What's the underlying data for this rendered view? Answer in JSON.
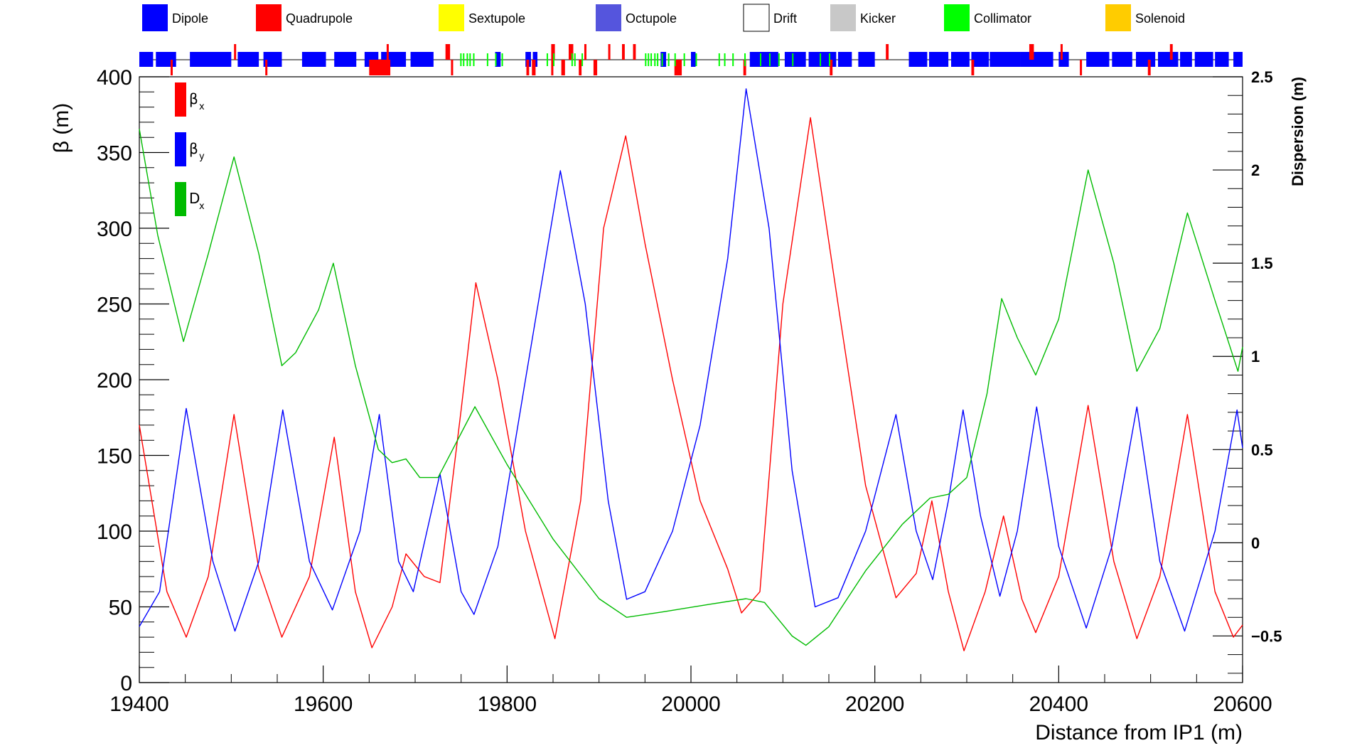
{
  "element_legend": [
    {
      "name": "Dipole",
      "color": "#0000ff"
    },
    {
      "name": "Quadrupole",
      "color": "#ff0000"
    },
    {
      "name": "Sextupole",
      "color": "#ffff00"
    },
    {
      "name": "Octupole",
      "color": "#5555dd"
    },
    {
      "name": "Drift",
      "color": "#ffffff"
    },
    {
      "name": "Kicker",
      "color": "#c8c8c8"
    },
    {
      "name": "Collimator",
      "color": "#00ff00"
    },
    {
      "name": "Solenoid",
      "color": "#ffcc00"
    }
  ],
  "series_legend": [
    {
      "symbol": "β",
      "sub": "x",
      "color": "#ff0000"
    },
    {
      "symbol": "β",
      "sub": "y",
      "color": "#0000ff"
    },
    {
      "symbol": "D",
      "sub": "x",
      "color": "#00bb00"
    }
  ],
  "axes": {
    "xlabel": "Distance from IP1 (m)",
    "ylabel": "β (m)",
    "y2label": "Dispersion (m)",
    "xticks": [
      "19400",
      "19600",
      "19800",
      "20000",
      "20200",
      "20400",
      "20600"
    ],
    "yticks": [
      "0",
      "50",
      "100",
      "150",
      "200",
      "250",
      "300",
      "350",
      "400"
    ],
    "y2ticks": [
      "−0.5",
      "0",
      "0.5",
      "1",
      "1.5",
      "2",
      "2.5"
    ]
  },
  "chart_data": {
    "type": "line",
    "xlabel": "Distance from IP1 (m)",
    "ylabel": "β (m)",
    "y2label": "Dispersion (m)",
    "xlim": [
      19400,
      20600
    ],
    "ylim": [
      0,
      400
    ],
    "y2lim": [
      -0.75,
      2.5
    ],
    "grid": false,
    "legend_position": "top-left",
    "series": [
      {
        "name": "βx",
        "axis": "left",
        "color": "#ff0000",
        "x": [
          19400,
          19430,
          19451,
          19475,
          19503,
          19530,
          19555,
          19585,
          19612,
          19635,
          19653,
          19675,
          19690,
          19710,
          19727,
          19750,
          19766,
          19790,
          19820,
          19852,
          19880,
          19905,
          19929,
          19950,
          19980,
          20010,
          20040,
          20055,
          20075,
          20100,
          20130,
          20160,
          20190,
          20223,
          20245,
          20262,
          20280,
          20297,
          20320,
          20340,
          20360,
          20375,
          20400,
          20432,
          20460,
          20485,
          20510,
          20540,
          20570,
          20590,
          20600
        ],
        "y": [
          170,
          60,
          30,
          70,
          177,
          75,
          30,
          70,
          162,
          60,
          23,
          50,
          85,
          70,
          66,
          180,
          264,
          200,
          100,
          29,
          120,
          300,
          361,
          290,
          200,
          120,
          75,
          46,
          60,
          250,
          373,
          250,
          130,
          56,
          72,
          120,
          60,
          21,
          60,
          110,
          55,
          33,
          70,
          183,
          80,
          29,
          70,
          177,
          60,
          30,
          38
        ]
      },
      {
        "name": "βy",
        "axis": "left",
        "color": "#0000ff",
        "x": [
          19400,
          19422,
          19451,
          19480,
          19504,
          19530,
          19556,
          19585,
          19610,
          19640,
          19661,
          19682,
          19698,
          19727,
          19750,
          19764,
          19790,
          19820,
          19858,
          19885,
          19910,
          19930,
          19950,
          19980,
          20010,
          20040,
          20060,
          20085,
          20110,
          20135,
          20160,
          20190,
          20223,
          20245,
          20263,
          20280,
          20296,
          20315,
          20336,
          20355,
          20376,
          20400,
          20430,
          20458,
          20485,
          20510,
          20537,
          20570,
          20594,
          20600
        ],
        "y": [
          37,
          60,
          181,
          80,
          34,
          80,
          180,
          80,
          48,
          100,
          177,
          80,
          60,
          138,
          60,
          45,
          90,
          200,
          338,
          250,
          120,
          55,
          60,
          100,
          170,
          280,
          392,
          300,
          140,
          50,
          56,
          100,
          177,
          100,
          68,
          120,
          180,
          110,
          57,
          100,
          182,
          90,
          36,
          90,
          182,
          80,
          34,
          100,
          180,
          155
        ]
      },
      {
        "name": "Dx",
        "axis": "right",
        "color": "#00bb00",
        "x": [
          19400,
          19420,
          19448,
          19475,
          19503,
          19530,
          19555,
          19570,
          19595,
          19611,
          19635,
          19660,
          19675,
          19690,
          19705,
          19725,
          19765,
          19800,
          19850,
          19900,
          19930,
          19970,
          20020,
          20060,
          20080,
          20110,
          20125,
          20150,
          20190,
          20230,
          20260,
          20280,
          20300,
          20322,
          20338,
          20355,
          20375,
          20400,
          20432,
          20460,
          20485,
          20510,
          20540,
          20570,
          20595,
          20600
        ],
        "y": [
          2.22,
          1.65,
          1.08,
          1.55,
          2.07,
          1.55,
          0.95,
          1.02,
          1.25,
          1.5,
          0.95,
          0.5,
          0.43,
          0.45,
          0.35,
          0.35,
          0.73,
          0.42,
          0.02,
          -0.3,
          -0.4,
          -0.37,
          -0.33,
          -0.3,
          -0.32,
          -0.5,
          -0.55,
          -0.45,
          -0.15,
          0.1,
          0.24,
          0.26,
          0.35,
          0.8,
          1.31,
          1.1,
          0.9,
          1.2,
          2.0,
          1.5,
          0.92,
          1.15,
          1.77,
          1.3,
          0.92,
          1.05
        ]
      }
    ]
  },
  "lattice": {
    "dipoles": [
      [
        19400,
        19415
      ],
      [
        19418,
        19440
      ],
      [
        19455,
        19500
      ],
      [
        19507,
        19530
      ],
      [
        19535,
        19555
      ],
      [
        19577,
        19603
      ],
      [
        19612,
        19636
      ],
      [
        19645,
        19660
      ],
      [
        19663,
        19690
      ],
      [
        19695,
        19720
      ],
      [
        19787,
        19793
      ],
      [
        19820,
        19826
      ],
      [
        19828,
        19833
      ],
      [
        19967,
        19973
      ],
      [
        20000,
        20005
      ],
      [
        20064,
        20095
      ],
      [
        20102,
        20125
      ],
      [
        20128,
        20158
      ],
      [
        20160,
        20175
      ],
      [
        20182,
        20200
      ],
      [
        20237,
        20257
      ],
      [
        20259,
        20277
      ],
      [
        20283,
        20303
      ],
      [
        20305,
        20324
      ],
      [
        20332,
        20358
      ],
      [
        20366,
        20393
      ],
      [
        20400,
        20411
      ]
    ],
    "quad_up": [
      [
        19503,
        19505
      ],
      [
        19669,
        19671
      ],
      [
        19733,
        19738
      ],
      [
        19848,
        19852
      ],
      [
        19867,
        19872
      ],
      [
        19884,
        19886
      ],
      [
        19910,
        19912
      ],
      [
        19925,
        19928
      ],
      [
        19937,
        19940
      ],
      [
        20212,
        20215
      ],
      [
        20368,
        20373
      ],
      [
        20402,
        20404
      ],
      [
        20521,
        20524
      ]
    ],
    "quad_down": [
      [
        19434,
        19436
      ],
      [
        19537,
        19539
      ],
      [
        19650,
        19655
      ],
      [
        19654,
        19673
      ],
      [
        19739,
        19741
      ],
      [
        19821,
        19824
      ],
      [
        19827,
        19831
      ],
      [
        19848,
        19850
      ],
      [
        19859,
        19863
      ],
      [
        19878,
        19881
      ],
      [
        19894,
        19898
      ],
      [
        19982,
        19990
      ],
      [
        20057,
        20060
      ],
      [
        20151,
        20154
      ],
      [
        20305,
        20308
      ],
      [
        20423,
        20425
      ],
      [
        20497,
        20500
      ]
    ],
    "collimators": [
      19749,
      19752,
      19756,
      19759,
      19763,
      19778,
      19787,
      19794,
      19843,
      19850,
      19870,
      19873,
      19881,
      19950,
      19953,
      19956,
      19960,
      19963,
      19968,
      19975,
      19982,
      19992,
      20005,
      20030,
      20036,
      20045,
      20058,
      20075,
      20085,
      20095,
      20110,
      20140,
      20150
    ]
  }
}
